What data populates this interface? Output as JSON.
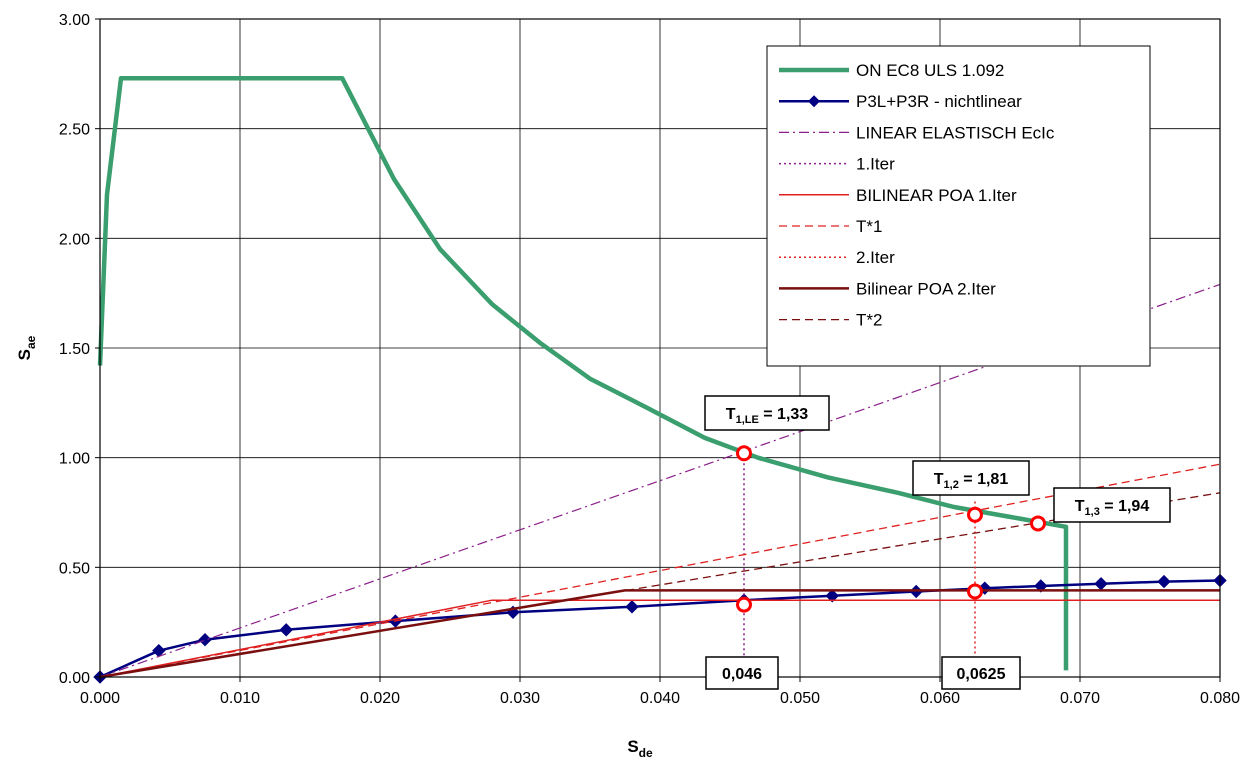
{
  "chart_data": {
    "type": "line",
    "xlabel": "S",
    "xlabel_sub": "de",
    "ylabel": "S",
    "ylabel_sub": "ae",
    "xlim": [
      0.0,
      0.08
    ],
    "ylim": [
      0.0,
      3.0
    ],
    "x_ticks": [
      {
        "v": 0.0,
        "label": "0.000"
      },
      {
        "v": 0.01,
        "label": "0.010"
      },
      {
        "v": 0.02,
        "label": "0.020"
      },
      {
        "v": 0.03,
        "label": "0.030"
      },
      {
        "v": 0.04,
        "label": "0.040"
      },
      {
        "v": 0.05,
        "label": "0.050"
      },
      {
        "v": 0.06,
        "label": "0.060"
      },
      {
        "v": 0.07,
        "label": "0.070"
      },
      {
        "v": 0.08,
        "label": "0.080"
      }
    ],
    "y_ticks": [
      {
        "v": 0.0,
        "label": "0.00"
      },
      {
        "v": 0.5,
        "label": "0.50"
      },
      {
        "v": 1.0,
        "label": "1.00"
      },
      {
        "v": 1.5,
        "label": "1.50"
      },
      {
        "v": 2.0,
        "label": "2.00"
      },
      {
        "v": 2.5,
        "label": "2.50"
      },
      {
        "v": 3.0,
        "label": "3.00"
      }
    ],
    "grid": true,
    "legend_position": "top-right",
    "series": [
      {
        "name": "ON EC8 ULS 1.092",
        "color": "#3a9e6e",
        "width": 4.5,
        "dash": "",
        "marker": "none",
        "points": [
          [
            0.0,
            1.42
          ],
          [
            0.0005,
            2.2
          ],
          [
            0.0015,
            2.73
          ],
          [
            0.0173,
            2.73
          ],
          [
            0.021,
            2.27
          ],
          [
            0.0243,
            1.95
          ],
          [
            0.028,
            1.7
          ],
          [
            0.0315,
            1.52
          ],
          [
            0.035,
            1.36
          ],
          [
            0.039,
            1.23
          ],
          [
            0.0432,
            1.09
          ],
          [
            0.047,
            1.0
          ],
          [
            0.052,
            0.91
          ],
          [
            0.057,
            0.84
          ],
          [
            0.061,
            0.775
          ],
          [
            0.065,
            0.73
          ],
          [
            0.069,
            0.685
          ],
          [
            0.069,
            0.03
          ]
        ]
      },
      {
        "name": "P3L+P3R - nichtlinear",
        "color": "#000080",
        "width": 2.5,
        "dash": "",
        "marker": "diamond",
        "points": [
          [
            0.0,
            0.0
          ],
          [
            0.0042,
            0.12
          ],
          [
            0.0075,
            0.17
          ],
          [
            0.0133,
            0.215
          ],
          [
            0.0211,
            0.255
          ],
          [
            0.0295,
            0.295
          ],
          [
            0.038,
            0.32
          ],
          [
            0.046,
            0.35
          ],
          [
            0.0523,
            0.37
          ],
          [
            0.0583,
            0.39
          ],
          [
            0.0632,
            0.405
          ],
          [
            0.0672,
            0.415
          ],
          [
            0.0715,
            0.425
          ],
          [
            0.076,
            0.435
          ],
          [
            0.08,
            0.44
          ]
        ]
      },
      {
        "name": "LINEAR ELASTISCH EcIc",
        "color": "#8a1f8a",
        "width": 1.2,
        "dash": "10,4,2,4",
        "marker": "none",
        "points": [
          [
            0.0,
            0.0
          ],
          [
            0.08,
            1.79
          ]
        ]
      },
      {
        "name": "1.Iter",
        "color": "#8a1f8a",
        "width": 1.5,
        "dash": "2,3",
        "marker": "none",
        "points": [
          [
            0.046,
            1.02
          ],
          [
            0.046,
            0.0
          ]
        ]
      },
      {
        "name": "BILINEAR POA 1.Iter",
        "color": "#e02020",
        "width": 1.5,
        "dash": "",
        "marker": "none",
        "points": [
          [
            0.0,
            0.0
          ],
          [
            0.028,
            0.35
          ],
          [
            0.08,
            0.35
          ]
        ]
      },
      {
        "name": "T*1",
        "color": "#e02020",
        "width": 1.3,
        "dash": "8,5",
        "marker": "none",
        "points": [
          [
            0.0,
            0.0
          ],
          [
            0.08,
            0.97
          ]
        ]
      },
      {
        "name": "2.Iter",
        "color": "#e02020",
        "width": 1.5,
        "dash": "2,3",
        "marker": "none",
        "points": [
          [
            0.0625,
            0.8
          ],
          [
            0.0625,
            0.0
          ]
        ]
      },
      {
        "name": "Bilinear POA 2.Iter",
        "color": "#7a0f0f",
        "width": 2.5,
        "dash": "",
        "marker": "none",
        "points": [
          [
            0.0,
            0.0
          ],
          [
            0.0375,
            0.395
          ],
          [
            0.08,
            0.395
          ]
        ]
      },
      {
        "name": "T*2",
        "color": "#7a0f0f",
        "width": 1.3,
        "dash": "8,5",
        "marker": "none",
        "points": [
          [
            0.0,
            0.0
          ],
          [
            0.08,
            0.84
          ]
        ]
      }
    ],
    "markers": [
      {
        "x": 0.046,
        "y": 1.02
      },
      {
        "x": 0.046,
        "y": 0.33
      },
      {
        "x": 0.0625,
        "y": 0.74
      },
      {
        "x": 0.0625,
        "y": 0.39
      },
      {
        "x": 0.067,
        "y": 0.7
      }
    ],
    "annotations": [
      {
        "name": "t1-le",
        "main": "T",
        "sub": "1,LE",
        "rest": " = 1,33"
      },
      {
        "name": "t1-2",
        "main": "T",
        "sub": "1,2",
        "rest": " = 1,81"
      },
      {
        "name": "t1-3",
        "main": "T",
        "sub": "1,3",
        "rest": " = 1,94"
      },
      {
        "name": "sde-046",
        "main": "0,046",
        "sub": "",
        "rest": ""
      },
      {
        "name": "sde-0625",
        "main": "0,0625",
        "sub": "",
        "rest": ""
      }
    ]
  }
}
